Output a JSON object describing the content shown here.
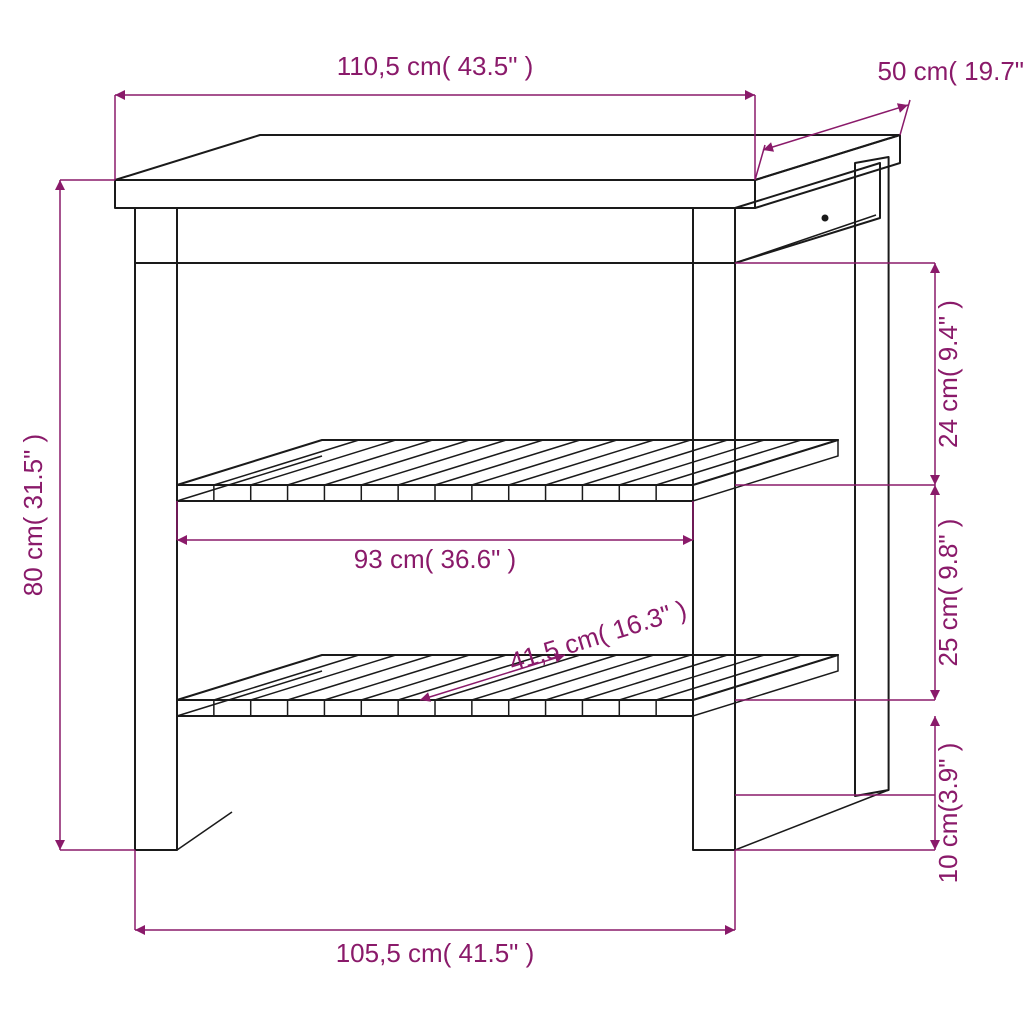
{
  "colors": {
    "dimension": "#8a1a6a",
    "product": "#1a1a1a",
    "background": "#ffffff"
  },
  "dimensions": {
    "top_width": {
      "label": "110,5 cm( 43.5\" )"
    },
    "top_depth": {
      "label": "50 cm( 19.7\" )"
    },
    "height": {
      "label": "80 cm( 31.5\" )"
    },
    "gap_top": {
      "label": "24 cm( 9.4\" )"
    },
    "gap_mid": {
      "label": "25 cm( 9.8\" )"
    },
    "gap_bottom": {
      "label": "10 cm(3.9\" )"
    },
    "shelf_width": {
      "label": "93 cm( 36.6\" )"
    },
    "shelf_depth": {
      "label": "41,5 cm( 16.3\" )"
    },
    "base_width": {
      "label": "105,5 cm( 41.5\" )"
    }
  },
  "geometry": {
    "slat_count": 14
  }
}
